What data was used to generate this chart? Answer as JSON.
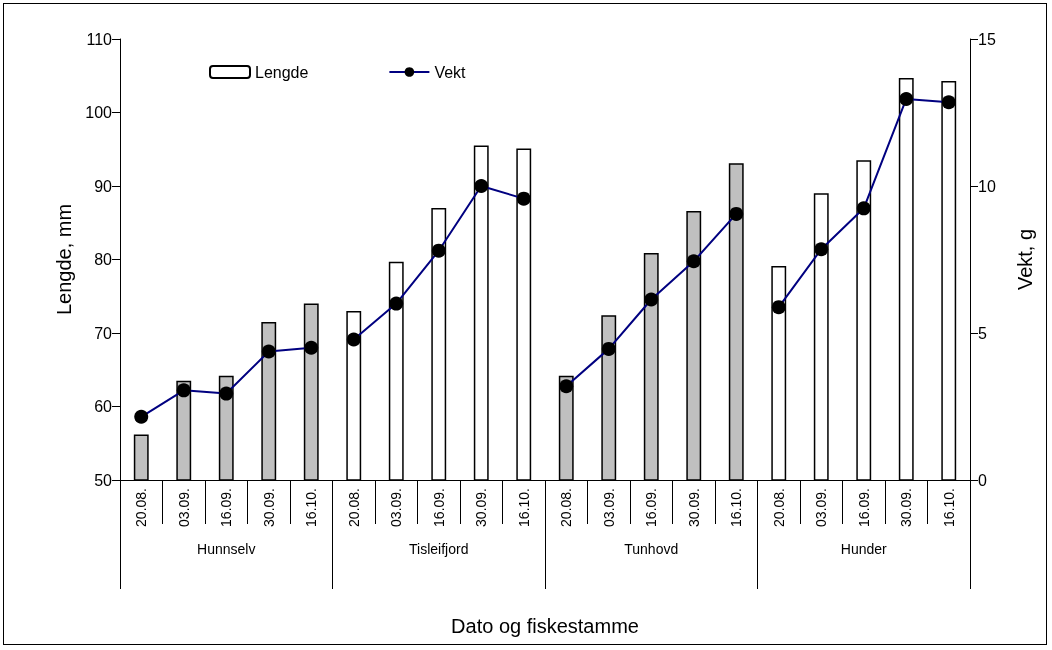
{
  "chart_data": {
    "type": "bar",
    "xlabel": "Dato og fiskestamme",
    "ylabel": "Lengde, mm",
    "y2label": "Vekt, g",
    "categories": [
      "20.08.",
      "03.09.",
      "16.09.",
      "30.09.",
      "16.10.",
      "20.08.",
      "03.09.",
      "16.09.",
      "30.09.",
      "16.10.",
      "20.08.",
      "03.09.",
      "16.09.",
      "30.09.",
      "16.10.",
      "20.08.",
      "03.09.",
      "16.09.",
      "30.09.",
      "16.10."
    ],
    "annotations": [
      "Hunnselv",
      "Tisleifjord",
      "Tunhovd",
      "Hunder"
    ],
    "series": [
      {
        "name": "Lengde",
        "color": "#ffffff",
        "colors": [
          "#c0c0c0",
          "#c0c0c0",
          "#c0c0c0",
          "#c0c0c0",
          "#c0c0c0",
          "#ffffff",
          "#ffffff",
          "#ffffff",
          "#ffffff",
          "#ffffff",
          "#c0c0c0",
          "#c0c0c0",
          "#c0c0c0",
          "#c0c0c0",
          "#c0c0c0",
          "#ffffff",
          "#ffffff",
          "#ffffff",
          "#ffffff",
          "#ffffff"
        ],
        "values": [
          56.2,
          63.5,
          64.2,
          71.5,
          74.0,
          73.0,
          79.7,
          87.0,
          95.5,
          95.1,
          64.2,
          72.4,
          80.9,
          86.6,
          93.1,
          79.1,
          89.0,
          93.5,
          104.7,
          104.3
        ]
      },
      {
        "name": "Vekt",
        "type": "line",
        "axis": "y2",
        "color": "#000080",
        "marker": "circle",
        "values": [
          2.15,
          3.05,
          2.94,
          4.37,
          4.5,
          4.78,
          6.0,
          7.8,
          10.0,
          9.57,
          3.19,
          4.46,
          6.14,
          7.44,
          9.05,
          5.88,
          7.85,
          9.24,
          12.96,
          12.85
        ]
      }
    ],
    "ylim": [
      50,
      110
    ],
    "yticks": [
      50,
      60,
      70,
      80,
      90,
      100,
      110
    ],
    "y2lim": [
      0,
      15
    ],
    "y2ticks": [
      0,
      5,
      10,
      15
    ],
    "grid": false,
    "legend": "top left"
  }
}
